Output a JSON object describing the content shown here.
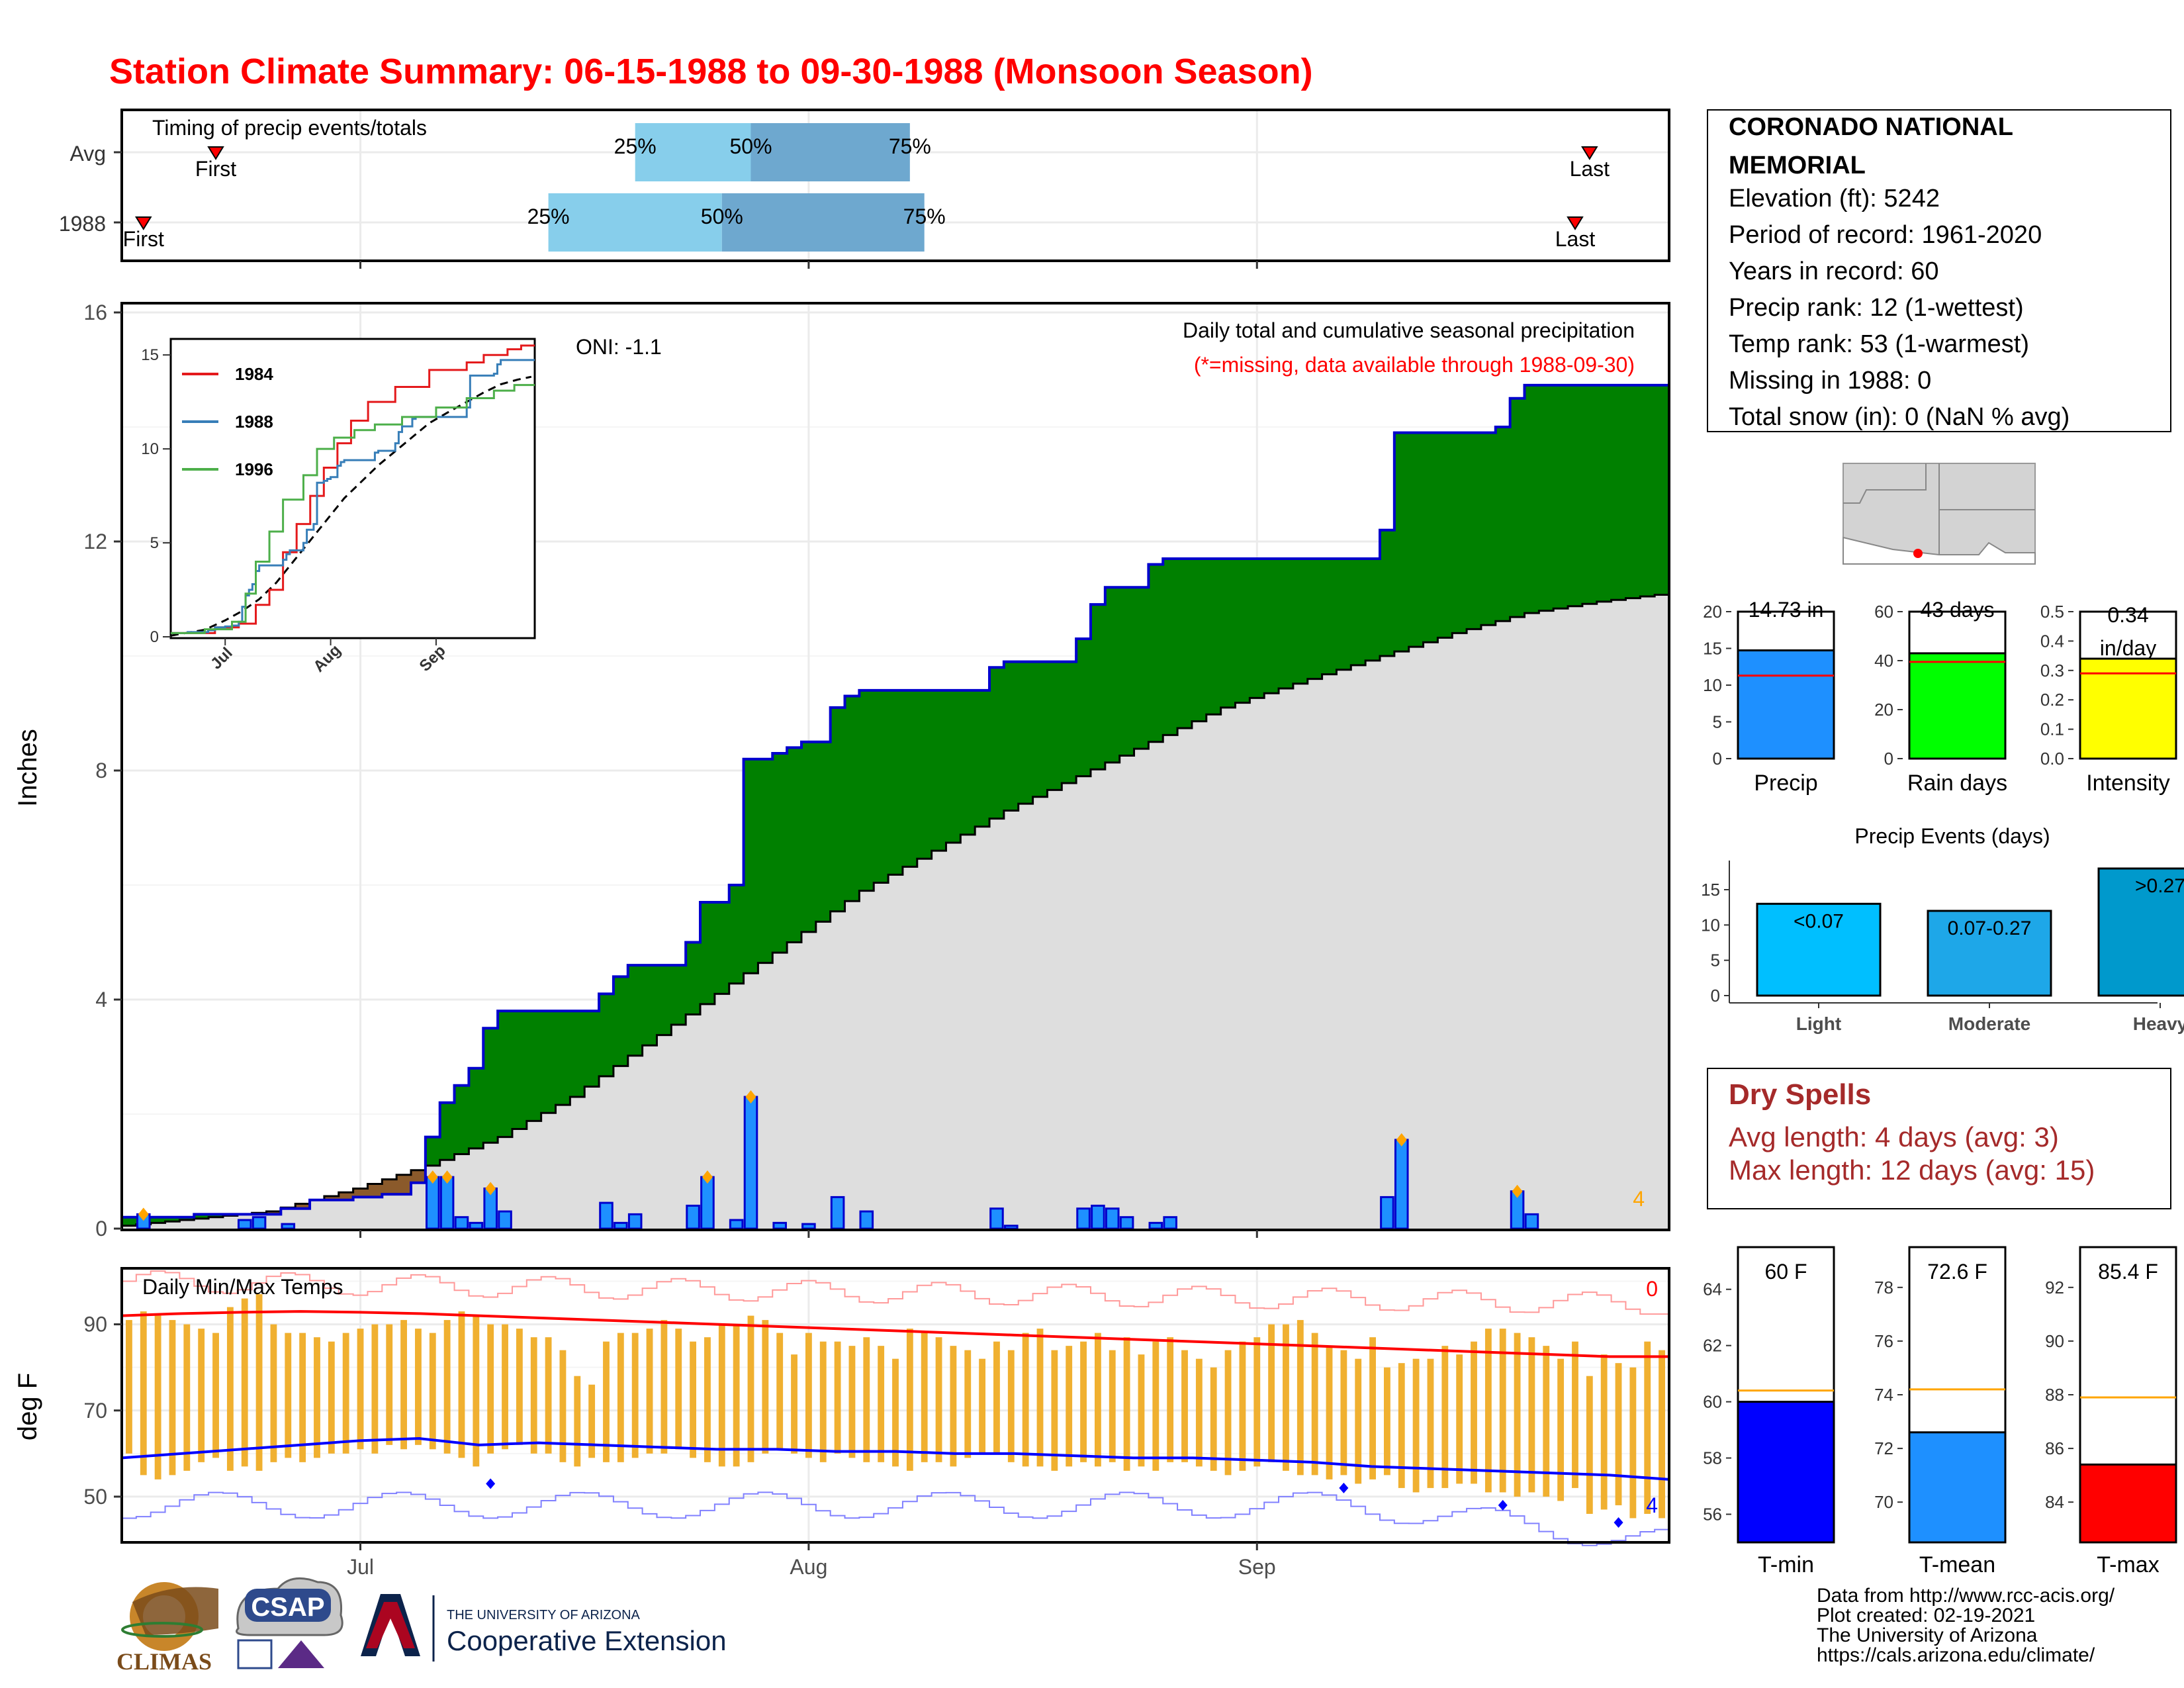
{
  "title": "Station Climate Summary: 06-15-1988 to 09-30-1988 (Monsoon Season)",
  "timing": {
    "title": "Timing of precip events/totals",
    "rows": [
      "Avg",
      "1988"
    ],
    "first_label": "First",
    "last_label": "Last",
    "q25": "25%",
    "q50": "50%",
    "q75": "75%",
    "avg": {
      "first": "06-21",
      "p25": "07-20",
      "p50": "07-28",
      "p75": "08-08",
      "last": "09-24"
    },
    "y1988": {
      "first": "06-16",
      "p25": "07-14",
      "p50": "07-26",
      "p75": "08-09",
      "last": "09-23"
    }
  },
  "main_panel": {
    "ylabel": "Inches",
    "yticks": [
      "0",
      "4",
      "8",
      "12",
      "16"
    ],
    "xticks": [
      "Jul",
      "Aug",
      "Sep"
    ],
    "oni": "ONI: -1.1",
    "legend_line1": "Daily total and cumulative seasonal precipitation",
    "legend_line2": "(*=missing, data available through 1988-09-30)",
    "corner_count": "4"
  },
  "inset": {
    "yticks": [
      "0",
      "5",
      "10",
      "15"
    ],
    "xticks": [
      "Jul",
      "Aug",
      "Sep"
    ],
    "series": [
      {
        "name": "1984",
        "color": "#e41a1c"
      },
      {
        "name": "1988",
        "color": "#377eb8"
      },
      {
        "name": "1996",
        "color": "#4daf4a"
      }
    ]
  },
  "temp_panel": {
    "ylabel": "deg F",
    "title": "Daily Min/Max Temps",
    "yticks": [
      "50",
      "70",
      "90"
    ],
    "xticks": [
      "Jul",
      "Aug",
      "Sep"
    ],
    "count_top": "0",
    "count_bottom": "4"
  },
  "station": {
    "name_line1": "CORONADO NATIONAL",
    "name_line2": "MEMORIAL",
    "elevation": "Elevation (ft): 5242",
    "period": "Period of record: 1961-2020",
    "years": "Years in record: 60",
    "precip_rank": "Precip rank: 12 (1-wettest)",
    "temp_rank": "Temp rank: 53 (1-warmest)",
    "missing": "Missing in 1988: 0",
    "snow": "Total snow (in): 0 (NaN % avg)"
  },
  "precip_bars": [
    {
      "label": "Precip",
      "value_text": "14.73 in",
      "yticks": [
        "0",
        "5",
        "10",
        "15",
        "20"
      ],
      "ymax": 20,
      "value": 14.73,
      "avg": 11.3,
      "color": "#1e90ff"
    },
    {
      "label": "Rain days",
      "value_text": "43 days",
      "yticks": [
        "0",
        "20",
        "40",
        "60"
      ],
      "ymax": 60,
      "value": 43,
      "avg": 39.5,
      "color": "#00ff00"
    },
    {
      "label": "Intensity",
      "value_text": "0.34 in/day",
      "yticks": [
        "0.0",
        "0.1",
        "0.2",
        "0.3",
        "0.4",
        "0.5"
      ],
      "ymax": 0.5,
      "value": 0.34,
      "avg": 0.29,
      "color": "#ffff00"
    }
  ],
  "events": {
    "title": "Precip Events (days)",
    "yticks": [
      "0",
      "5",
      "10",
      "15"
    ],
    "ymax": 18,
    "bars": [
      {
        "category": "Light",
        "label": "<0.07",
        "value": 13,
        "color": "#00bfff"
      },
      {
        "category": "Moderate",
        "label": "0.07-0.27",
        "value": 12,
        "color": "#1ea7e8"
      },
      {
        "category": "Heavy",
        "label": ">0.27",
        "value": 18,
        "color": "#0099cc"
      }
    ]
  },
  "dry_spells": {
    "title": "Dry Spells",
    "avg_length": "Avg length: 4 days (avg: 3)",
    "max_length": "Max length: 12 days (avg: 15)"
  },
  "temp_bars": [
    {
      "label": "T-min",
      "value_text": "60 F",
      "yticks": [
        "56",
        "58",
        "60",
        "62",
        "64"
      ],
      "ymin": 55,
      "ymax": 65.5,
      "value": 60,
      "avg": 60.4,
      "color": "#0000ff"
    },
    {
      "label": "T-mean",
      "value_text": "72.6 F",
      "yticks": [
        "70",
        "72",
        "74",
        "76",
        "78"
      ],
      "ymin": 68.5,
      "ymax": 79.5,
      "value": 72.6,
      "avg": 74.2,
      "color": "#1e90ff"
    },
    {
      "label": "T-max",
      "value_text": "85.4 F",
      "yticks": [
        "84",
        "86",
        "88",
        "90",
        "92"
      ],
      "ymin": 82.5,
      "ymax": 93.5,
      "value": 85.4,
      "avg": 87.9,
      "color": "#ff0000"
    }
  ],
  "credits": {
    "line1": "Data from http://www.rcc-acis.org/",
    "line2": "Plot created: 02-19-2021",
    "line3": "The University of Arizona",
    "line4": "https://cals.arizona.edu/climate/",
    "climas": "CLIMAS",
    "csap": "CSAP",
    "ua_small": "THE UNIVERSITY OF ARIZONA",
    "coop": "Cooperative Extension"
  },
  "chart_data": {
    "type": "area",
    "title": "Station Climate Summary: 06-15-1988 to 09-30-1988 (Monsoon Season)",
    "ylabel": "Inches",
    "ylim": [
      0,
      16
    ],
    "x_range": [
      "1988-06-15",
      "1988-09-30"
    ],
    "cumulative_1988": [
      [
        "06-15",
        0.2
      ],
      [
        "06-20",
        0.25
      ],
      [
        "06-26",
        0.35
      ],
      [
        "06-28",
        0.5
      ],
      [
        "07-01",
        0.55
      ],
      [
        "07-03",
        0.6
      ],
      [
        "07-05",
        0.8
      ],
      [
        "07-06",
        1.6
      ],
      [
        "07-07",
        2.2
      ],
      [
        "07-08",
        2.5
      ],
      [
        "07-09",
        2.8
      ],
      [
        "07-10",
        3.5
      ],
      [
        "07-11",
        3.8
      ],
      [
        "07-18",
        4.1
      ],
      [
        "07-19",
        4.4
      ],
      [
        "07-20",
        4.6
      ],
      [
        "07-24",
        5.0
      ],
      [
        "07-25",
        5.7
      ],
      [
        "07-27",
        6.0
      ],
      [
        "07-28",
        8.2
      ],
      [
        "07-30",
        8.3
      ],
      [
        "07-31",
        8.4
      ],
      [
        "08-01",
        8.5
      ],
      [
        "08-03",
        9.1
      ],
      [
        "08-04",
        9.3
      ],
      [
        "08-05",
        9.4
      ],
      [
        "08-14",
        9.8
      ],
      [
        "08-15",
        9.9
      ],
      [
        "08-20",
        10.3
      ],
      [
        "08-21",
        10.9
      ],
      [
        "08-22",
        11.2
      ],
      [
        "08-25",
        11.6
      ],
      [
        "08-26",
        11.7
      ],
      [
        "09-09",
        11.7
      ],
      [
        "09-10",
        12.2
      ],
      [
        "09-11",
        13.9
      ],
      [
        "09-18",
        14.0
      ],
      [
        "09-19",
        14.5
      ],
      [
        "09-20",
        14.73
      ],
      [
        "09-30",
        14.73
      ]
    ],
    "avg_cumulative": [
      [
        "06-15",
        0.05
      ],
      [
        "06-25",
        0.3
      ],
      [
        "07-01",
        0.7
      ],
      [
        "07-06",
        1.1
      ],
      [
        "07-11",
        1.6
      ],
      [
        "07-16",
        2.3
      ],
      [
        "07-21",
        3.2
      ],
      [
        "07-26",
        4.1
      ],
      [
        "07-31",
        5.0
      ],
      [
        "08-05",
        5.9
      ],
      [
        "08-10",
        6.6
      ],
      [
        "08-15",
        7.3
      ],
      [
        "08-20",
        7.9
      ],
      [
        "08-25",
        8.5
      ],
      [
        "08-30",
        9.1
      ],
      [
        "09-05",
        9.6
      ],
      [
        "09-10",
        10.0
      ],
      [
        "09-15",
        10.4
      ],
      [
        "09-20",
        10.75
      ],
      [
        "09-25",
        10.95
      ],
      [
        "09-30",
        11.1
      ]
    ],
    "daily_precip": [
      [
        "06-16",
        0.25
      ],
      [
        "06-23",
        0.15
      ],
      [
        "06-24",
        0.2
      ],
      [
        "06-26",
        0.08
      ],
      [
        "07-06",
        0.9
      ],
      [
        "07-07",
        0.9
      ],
      [
        "07-08",
        0.2
      ],
      [
        "07-09",
        0.1
      ],
      [
        "07-10",
        0.7
      ],
      [
        "07-11",
        0.3
      ],
      [
        "07-18",
        0.45
      ],
      [
        "07-19",
        0.1
      ],
      [
        "07-20",
        0.25
      ],
      [
        "07-24",
        0.4
      ],
      [
        "07-25",
        0.9
      ],
      [
        "07-27",
        0.15
      ],
      [
        "07-28",
        2.3
      ],
      [
        "07-30",
        0.1
      ],
      [
        "08-01",
        0.08
      ],
      [
        "08-03",
        0.55
      ],
      [
        "08-05",
        0.3
      ],
      [
        "08-14",
        0.35
      ],
      [
        "08-15",
        0.05
      ],
      [
        "08-20",
        0.35
      ],
      [
        "08-21",
        0.4
      ],
      [
        "08-22",
        0.35
      ],
      [
        "08-23",
        0.2
      ],
      [
        "08-25",
        0.1
      ],
      [
        "08-26",
        0.2
      ],
      [
        "09-10",
        0.55
      ],
      [
        "09-11",
        1.55
      ],
      [
        "09-19",
        0.65
      ],
      [
        "09-20",
        0.25
      ]
    ],
    "temp_tmax_1988": [
      91,
      93,
      92,
      91,
      90,
      89,
      88,
      94,
      96,
      97,
      90,
      88,
      88,
      87,
      86,
      88,
      89,
      90,
      90,
      91,
      89,
      88,
      91,
      93,
      92,
      90,
      90,
      89,
      87,
      87,
      84,
      78,
      76,
      86,
      88,
      88,
      89,
      91,
      89,
      86,
      87,
      90,
      90,
      92,
      91,
      88,
      83,
      88,
      86,
      86,
      85,
      87,
      85,
      82,
      89,
      88,
      87,
      85,
      84,
      82,
      86,
      84,
      88,
      89,
      84,
      85,
      86,
      88,
      84,
      87,
      83,
      86,
      87,
      84,
      82,
      80,
      84,
      86,
      87,
      90,
      90,
      91,
      88,
      85,
      84,
      82,
      87,
      80,
      81,
      82,
      82,
      85,
      83,
      86,
      89,
      89,
      88,
      87,
      85,
      82,
      86,
      78,
      83,
      81,
      80,
      86,
      84
    ],
    "temp_tmin_1988": [
      60,
      55,
      54,
      55,
      56,
      58,
      59,
      56,
      57,
      56,
      58,
      59,
      58,
      59,
      60,
      60,
      61,
      60,
      62,
      61,
      62,
      61,
      60,
      59,
      57,
      60,
      61,
      62,
      60,
      60,
      58,
      57,
      59,
      58,
      58,
      59,
      60,
      60,
      61,
      59,
      58,
      57,
      57,
      58,
      60,
      61,
      60,
      59,
      58,
      60,
      59,
      58,
      58,
      57,
      56,
      58,
      58,
      57,
      59,
      60,
      60,
      58,
      57,
      57,
      56,
      57,
      58,
      57,
      58,
      56,
      57,
      56,
      58,
      58,
      57,
      56,
      55,
      56,
      57,
      58,
      56,
      55,
      55,
      54,
      55,
      53,
      54,
      55,
      52,
      51,
      52,
      52,
      53,
      53,
      51,
      51,
      50,
      51,
      50,
      49,
      52,
      46,
      47,
      48,
      45,
      46,
      45
    ],
    "temp_avg_max": [
      92,
      92.5,
      92.8,
      93,
      92.8,
      92.5,
      92,
      91.5,
      91,
      90.5,
      90,
      89.5,
      89,
      88.5,
      88,
      87.5,
      87,
      86.5,
      86,
      85.5,
      85,
      84.5,
      84,
      83.5,
      83,
      82.5,
      82.5
    ],
    "temp_avg_min": [
      59,
      60,
      61,
      62,
      63,
      63.5,
      62,
      62.5,
      62,
      61.5,
      61,
      61,
      60.5,
      60.5,
      60,
      60,
      59.5,
      59,
      59,
      58.5,
      58,
      57,
      56.5,
      56,
      55.5,
      55,
      54
    ]
  }
}
